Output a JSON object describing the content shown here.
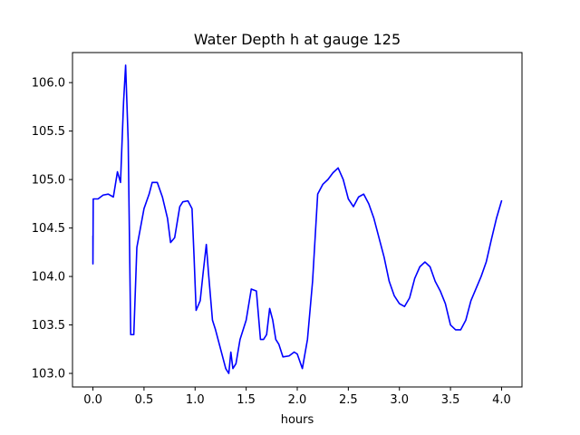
{
  "chart_data": {
    "type": "line",
    "title": "Water Depth h at gauge 125",
    "xlabel": "hours",
    "ylabel": "",
    "xlim": [
      -0.2,
      4.2
    ],
    "ylim": [
      102.86,
      106.31
    ],
    "x_ticks": [
      0.0,
      0.5,
      1.0,
      1.5,
      2.0,
      2.5,
      3.0,
      3.5,
      4.0
    ],
    "x_tick_labels": [
      "0.0",
      "0.5",
      "1.0",
      "1.5",
      "2.0",
      "2.5",
      "3.0",
      "3.5",
      "4.0"
    ],
    "y_ticks": [
      103.0,
      103.5,
      104.0,
      104.5,
      105.0,
      105.5,
      106.0
    ],
    "y_tick_labels": [
      "103.0",
      "103.5",
      "104.0",
      "104.5",
      "105.0",
      "105.5",
      "106.0"
    ],
    "grid": false,
    "series": [
      {
        "color": "#0000ff",
        "points": [
          [
            0.0,
            104.42
          ],
          [
            0.0,
            104.13
          ],
          [
            0.003,
            104.8
          ],
          [
            0.05,
            104.8
          ],
          [
            0.1,
            104.84
          ],
          [
            0.15,
            104.85
          ],
          [
            0.2,
            104.82
          ],
          [
            0.24,
            105.08
          ],
          [
            0.27,
            104.97
          ],
          [
            0.3,
            105.8
          ],
          [
            0.32,
            106.18
          ],
          [
            0.345,
            105.4
          ],
          [
            0.37,
            103.4
          ],
          [
            0.4,
            103.4
          ],
          [
            0.43,
            104.3
          ],
          [
            0.5,
            104.7
          ],
          [
            0.55,
            104.85
          ],
          [
            0.58,
            104.97
          ],
          [
            0.63,
            104.97
          ],
          [
            0.68,
            104.82
          ],
          [
            0.73,
            104.6
          ],
          [
            0.76,
            104.35
          ],
          [
            0.8,
            104.4
          ],
          [
            0.85,
            104.72
          ],
          [
            0.88,
            104.77
          ],
          [
            0.93,
            104.78
          ],
          [
            0.97,
            104.7
          ],
          [
            0.99,
            104.2
          ],
          [
            1.01,
            103.65
          ],
          [
            1.05,
            103.75
          ],
          [
            1.08,
            104.05
          ],
          [
            1.11,
            104.33
          ],
          [
            1.13,
            104.05
          ],
          [
            1.17,
            103.55
          ],
          [
            1.2,
            103.45
          ],
          [
            1.25,
            103.25
          ],
          [
            1.3,
            103.05
          ],
          [
            1.33,
            103.0
          ],
          [
            1.35,
            103.22
          ],
          [
            1.37,
            103.05
          ],
          [
            1.4,
            103.1
          ],
          [
            1.44,
            103.35
          ],
          [
            1.5,
            103.55
          ],
          [
            1.55,
            103.87
          ],
          [
            1.6,
            103.85
          ],
          [
            1.64,
            103.35
          ],
          [
            1.67,
            103.35
          ],
          [
            1.7,
            103.4
          ],
          [
            1.73,
            103.67
          ],
          [
            1.76,
            103.55
          ],
          [
            1.79,
            103.35
          ],
          [
            1.82,
            103.3
          ],
          [
            1.86,
            103.17
          ],
          [
            1.92,
            103.18
          ],
          [
            1.97,
            103.22
          ],
          [
            2.0,
            103.2
          ],
          [
            2.05,
            103.05
          ],
          [
            2.1,
            103.35
          ],
          [
            2.15,
            103.95
          ],
          [
            2.2,
            104.85
          ],
          [
            2.25,
            104.95
          ],
          [
            2.3,
            105.0
          ],
          [
            2.35,
            105.07
          ],
          [
            2.4,
            105.12
          ],
          [
            2.45,
            105.0
          ],
          [
            2.5,
            104.8
          ],
          [
            2.55,
            104.72
          ],
          [
            2.6,
            104.82
          ],
          [
            2.65,
            104.85
          ],
          [
            2.7,
            104.75
          ],
          [
            2.75,
            104.6
          ],
          [
            2.8,
            104.4
          ],
          [
            2.85,
            104.2
          ],
          [
            2.9,
            103.95
          ],
          [
            2.95,
            103.8
          ],
          [
            3.0,
            103.72
          ],
          [
            3.05,
            103.69
          ],
          [
            3.1,
            103.78
          ],
          [
            3.15,
            103.98
          ],
          [
            3.2,
            104.1
          ],
          [
            3.25,
            104.15
          ],
          [
            3.3,
            104.1
          ],
          [
            3.35,
            103.95
          ],
          [
            3.4,
            103.85
          ],
          [
            3.45,
            103.72
          ],
          [
            3.5,
            103.5
          ],
          [
            3.55,
            103.45
          ],
          [
            3.6,
            103.45
          ],
          [
            3.65,
            103.55
          ],
          [
            3.7,
            103.75
          ],
          [
            3.8,
            104.0
          ],
          [
            3.85,
            104.15
          ],
          [
            3.9,
            104.38
          ],
          [
            3.95,
            104.6
          ],
          [
            4.0,
            104.78
          ]
        ]
      }
    ]
  }
}
